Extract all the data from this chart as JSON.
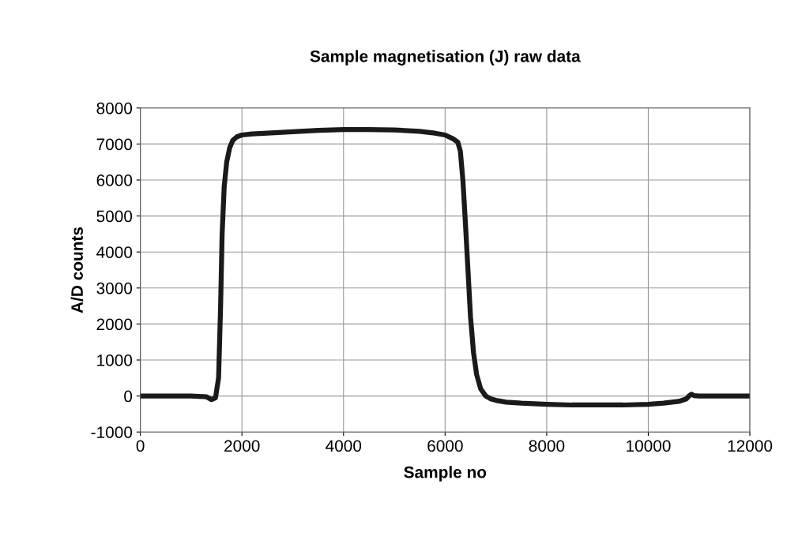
{
  "chart_data": {
    "type": "line",
    "title": "Sample magnetisation (J) raw data",
    "xlabel": "Sample no",
    "ylabel": "A/D counts",
    "series": [
      {
        "color": "#1a1a1a",
        "x": [
          0,
          500,
          1000,
          1300,
          1400,
          1480,
          1540,
          1580,
          1610,
          1650,
          1700,
          1760,
          1820,
          1900,
          2000,
          2200,
          2500,
          3000,
          3500,
          4000,
          4500,
          5000,
          5500,
          5800,
          6000,
          6150,
          6250,
          6300,
          6350,
          6400,
          6450,
          6500,
          6560,
          6620,
          6700,
          6800,
          6900,
          7000,
          7200,
          7500,
          8000,
          8500,
          9000,
          9500,
          10000,
          10300,
          10600,
          10750,
          10800,
          10850,
          10900,
          11000,
          11500,
          12000
        ],
        "values": [
          0,
          0,
          0,
          -20,
          -100,
          -50,
          500,
          2500,
          4500,
          5800,
          6500,
          6900,
          7100,
          7200,
          7250,
          7280,
          7300,
          7340,
          7380,
          7400,
          7400,
          7390,
          7350,
          7300,
          7250,
          7150,
          7050,
          6800,
          6000,
          4800,
          3500,
          2200,
          1200,
          600,
          200,
          0,
          -80,
          -120,
          -170,
          -200,
          -230,
          -250,
          -250,
          -250,
          -230,
          -200,
          -150,
          -80,
          0,
          50,
          10,
          0,
          0,
          0
        ]
      }
    ],
    "xlim": [
      0,
      12000
    ],
    "xticks": [
      0,
      2000,
      4000,
      6000,
      8000,
      10000,
      12000
    ],
    "ylim": [
      -1000,
      8000
    ],
    "yticks": [
      -1000,
      0,
      1000,
      2000,
      3000,
      4000,
      5000,
      6000,
      7000,
      8000
    ],
    "grid": true,
    "marker": "none",
    "line_style": "solid"
  }
}
